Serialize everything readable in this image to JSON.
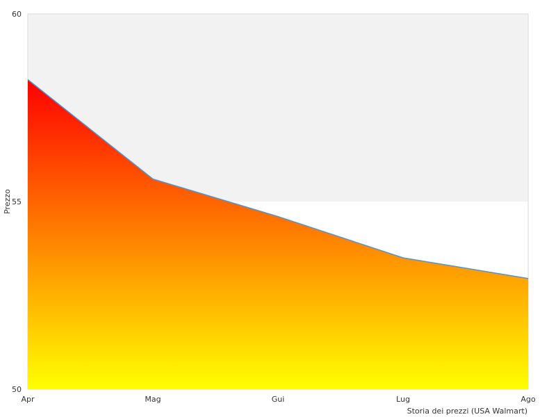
{
  "chart_data": {
    "type": "area",
    "categories": [
      "Apr",
      "Mag",
      "Gui",
      "Lug",
      "Ago"
    ],
    "series": [
      {
        "values": [
          58.25,
          55.6,
          54.6,
          53.5,
          52.95
        ]
      }
    ],
    "title": "",
    "xlabel": "Storia dei prezzi (USA Walmart)",
    "ylabel": "Prezzo",
    "ylim": [
      50,
      60
    ],
    "yticks": [
      "50",
      "55",
      "60"
    ],
    "grid": true,
    "legend": "none",
    "colors": {
      "upper_band": "#f2f2f2",
      "lower_band": "#ffffff",
      "gradient_top": "#ff0000",
      "gradient_bottom": "#ffff00",
      "line": "#4f93d8",
      "frame": "#d9d9d9"
    }
  }
}
